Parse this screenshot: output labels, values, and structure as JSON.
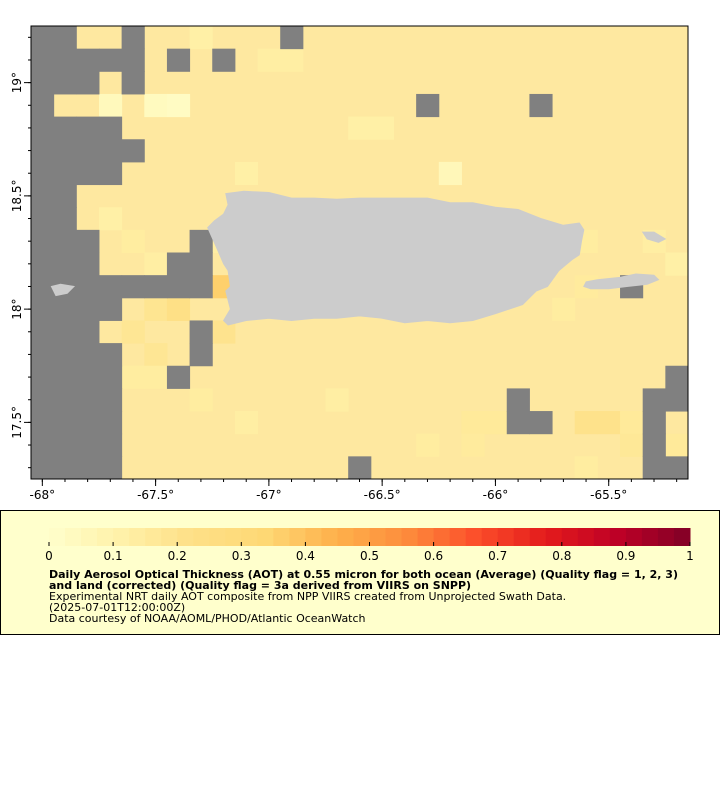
{
  "map": {
    "bounds": {
      "lon_min": -68.05,
      "lon_max": -65.15,
      "lat_min": 17.25,
      "lat_max": 19.25
    },
    "lon_ticks": [
      {
        "value": -68,
        "label": "-68°"
      },
      {
        "value": -67.5,
        "label": "-67.5°"
      },
      {
        "value": -67,
        "label": "-67°"
      },
      {
        "value": -66.5,
        "label": "-66.5°"
      },
      {
        "value": -66,
        "label": "-66°"
      },
      {
        "value": -65.5,
        "label": "-65.5°"
      }
    ],
    "lat_ticks": [
      {
        "value": 19,
        "label": "19°"
      },
      {
        "value": 18.5,
        "label": "18.5°"
      },
      {
        "value": 18,
        "label": "18°"
      },
      {
        "value": 17.5,
        "label": "17.5°"
      }
    ],
    "colors": {
      "missing": "#808080",
      "land": "#cccccc",
      "default_aot": "#fee8a0"
    },
    "cell_deg": 0.1,
    "missing_cells": [
      [
        -68.0,
        19.2
      ],
      [
        -67.9,
        19.2
      ],
      [
        -67.6,
        19.2
      ],
      [
        -66.9,
        19.2
      ],
      [
        -68.0,
        19.1
      ],
      [
        -67.9,
        19.1
      ],
      [
        -67.8,
        19.1
      ],
      [
        -67.7,
        19.1
      ],
      [
        -67.6,
        19.1
      ],
      [
        -67.4,
        19.1
      ],
      [
        -67.2,
        19.1
      ],
      [
        -68.0,
        19.0
      ],
      [
        -67.9,
        19.0
      ],
      [
        -67.8,
        19.0
      ],
      [
        -67.6,
        19.0
      ],
      [
        -68.0,
        18.9
      ],
      [
        -66.3,
        18.9
      ],
      [
        -65.8,
        18.9
      ],
      [
        -68.0,
        18.8
      ],
      [
        -67.9,
        18.8
      ],
      [
        -67.8,
        18.8
      ],
      [
        -67.7,
        18.8
      ],
      [
        -68.0,
        18.7
      ],
      [
        -67.9,
        18.7
      ],
      [
        -67.8,
        18.7
      ],
      [
        -67.7,
        18.7
      ],
      [
        -67.6,
        18.7
      ],
      [
        -68.0,
        18.6
      ],
      [
        -67.9,
        18.6
      ],
      [
        -67.8,
        18.6
      ],
      [
        -67.7,
        18.6
      ],
      [
        -68.0,
        18.5
      ],
      [
        -67.9,
        18.5
      ],
      [
        -68.0,
        18.4
      ],
      [
        -67.9,
        18.4
      ],
      [
        -68.0,
        18.3
      ],
      [
        -67.9,
        18.3
      ],
      [
        -67.8,
        18.3
      ],
      [
        -67.3,
        18.3
      ],
      [
        -68.0,
        18.2
      ],
      [
        -67.9,
        18.2
      ],
      [
        -67.8,
        18.2
      ],
      [
        -67.4,
        18.2
      ],
      [
        -67.3,
        18.2
      ],
      [
        -68.0,
        18.1
      ],
      [
        -67.9,
        18.1
      ],
      [
        -67.8,
        18.1
      ],
      [
        -67.7,
        18.1
      ],
      [
        -67.6,
        18.1
      ],
      [
        -67.5,
        18.1
      ],
      [
        -67.4,
        18.1
      ],
      [
        -67.3,
        18.1
      ],
      [
        -65.4,
        18.1
      ],
      [
        -68.0,
        18.0
      ],
      [
        -67.9,
        18.0
      ],
      [
        -67.8,
        18.0
      ],
      [
        -67.7,
        18.0
      ],
      [
        -68.0,
        17.9
      ],
      [
        -67.9,
        17.9
      ],
      [
        -67.8,
        17.9
      ],
      [
        -67.3,
        17.9
      ],
      [
        -68.0,
        17.8
      ],
      [
        -67.9,
        17.8
      ],
      [
        -67.8,
        17.8
      ],
      [
        -67.7,
        17.8
      ],
      [
        -67.3,
        17.8
      ],
      [
        -68.0,
        17.7
      ],
      [
        -67.9,
        17.7
      ],
      [
        -67.8,
        17.7
      ],
      [
        -67.7,
        17.7
      ],
      [
        -67.4,
        17.7
      ],
      [
        -65.2,
        17.7
      ],
      [
        -68.0,
        17.6
      ],
      [
        -67.9,
        17.6
      ],
      [
        -67.8,
        17.6
      ],
      [
        -67.7,
        17.6
      ],
      [
        -65.9,
        17.6
      ],
      [
        -65.3,
        17.6
      ],
      [
        -65.2,
        17.6
      ],
      [
        -68.0,
        17.5
      ],
      [
        -67.9,
        17.5
      ],
      [
        -67.8,
        17.5
      ],
      [
        -67.7,
        17.5
      ],
      [
        -65.9,
        17.5
      ],
      [
        -65.8,
        17.5
      ],
      [
        -65.3,
        17.5
      ],
      [
        -68.0,
        17.4
      ],
      [
        -67.9,
        17.4
      ],
      [
        -67.8,
        17.4
      ],
      [
        -67.7,
        17.4
      ],
      [
        -65.3,
        17.4
      ],
      [
        -68.0,
        17.3
      ],
      [
        -67.9,
        17.3
      ],
      [
        -67.8,
        17.3
      ],
      [
        -67.7,
        17.3
      ],
      [
        -66.6,
        17.3
      ],
      [
        -65.3,
        17.3
      ],
      [
        -65.2,
        17.3
      ],
      [
        -66.7,
        17.2
      ]
    ],
    "aot_cells": [
      {
        "lon": -67.5,
        "lat": 18.0,
        "aot": 0.19
      },
      {
        "lon": -67.4,
        "lat": 18.0,
        "aot": 0.23
      },
      {
        "lon": -67.6,
        "lat": 17.9,
        "aot": 0.18
      },
      {
        "lon": -67.2,
        "lat": 18.1,
        "aot": 0.36
      },
      {
        "lon": -67.2,
        "lat": 17.9,
        "aot": 0.2
      },
      {
        "lon": -67.5,
        "lat": 17.8,
        "aot": 0.18
      },
      {
        "lon": -67.6,
        "lat": 17.7,
        "aot": 0.14
      },
      {
        "lon": -67.5,
        "lat": 17.7,
        "aot": 0.14
      },
      {
        "lon": -67.7,
        "lat": 18.4,
        "aot": 0.12
      },
      {
        "lon": -67.6,
        "lat": 18.3,
        "aot": 0.14
      },
      {
        "lon": -67.5,
        "lat": 18.2,
        "aot": 0.13
      },
      {
        "lon": -67.7,
        "lat": 18.9,
        "aot": 0.05
      },
      {
        "lon": -67.5,
        "lat": 18.9,
        "aot": 0.04
      },
      {
        "lon": -67.4,
        "lat": 18.9,
        "aot": 0.03
      },
      {
        "lon": -66.6,
        "lat": 18.8,
        "aot": 0.12
      },
      {
        "lon": -66.5,
        "lat": 18.8,
        "aot": 0.12
      },
      {
        "lon": -65.6,
        "lat": 18.3,
        "aot": 0.14
      },
      {
        "lon": -65.6,
        "lat": 18.1,
        "aot": 0.15
      },
      {
        "lon": -65.7,
        "lat": 18.0,
        "aot": 0.14
      },
      {
        "lon": -65.8,
        "lat": 17.5,
        "aot": 0.16
      },
      {
        "lon": -65.6,
        "lat": 17.5,
        "aot": 0.21
      },
      {
        "lon": -65.5,
        "lat": 17.5,
        "aot": 0.21
      },
      {
        "lon": -65.4,
        "lat": 17.5,
        "aot": 0.16
      },
      {
        "lon": -66.1,
        "lat": 17.5,
        "aot": 0.16
      },
      {
        "lon": -66.0,
        "lat": 17.5,
        "aot": 0.16
      },
      {
        "lon": -66.3,
        "lat": 17.4,
        "aot": 0.14
      },
      {
        "lon": -66.1,
        "lat": 17.4,
        "aot": 0.15
      },
      {
        "lon": -65.4,
        "lat": 17.4,
        "aot": 0.17
      },
      {
        "lon": -65.6,
        "lat": 17.3,
        "aot": 0.14
      },
      {
        "lon": -65.2,
        "lat": 17.4,
        "aot": 0.16
      },
      {
        "lon": -67.2,
        "lat": 18.3,
        "aot": 0.13
      },
      {
        "lon": -67.3,
        "lat": 17.6,
        "aot": 0.14
      },
      {
        "lon": -67.1,
        "lat": 17.5,
        "aot": 0.13
      },
      {
        "lon": -66.7,
        "lat": 17.6,
        "aot": 0.13
      },
      {
        "lon": -67.3,
        "lat": 19.2,
        "aot": 0.12
      },
      {
        "lon": -67.0,
        "lat": 19.1,
        "aot": 0.13
      },
      {
        "lon": -66.9,
        "lat": 19.1,
        "aot": 0.13
      },
      {
        "lon": -67.1,
        "lat": 18.6,
        "aot": 0.12
      },
      {
        "lon": -66.2,
        "lat": 18.6,
        "aot": 0.06
      },
      {
        "lon": -65.3,
        "lat": 18.3,
        "aot": 0.13
      },
      {
        "lon": -65.2,
        "lat": 18.2,
        "aot": 0.12
      }
    ],
    "land": {
      "puerto_rico": [
        [
          -67.19,
          18.51
        ],
        [
          -67.11,
          18.52
        ],
        [
          -67.0,
          18.515
        ],
        [
          -66.9,
          18.49
        ],
        [
          -66.8,
          18.49
        ],
        [
          -66.7,
          18.485
        ],
        [
          -66.6,
          18.49
        ],
        [
          -66.5,
          18.49
        ],
        [
          -66.4,
          18.49
        ],
        [
          -66.3,
          18.49
        ],
        [
          -66.2,
          18.47
        ],
        [
          -66.1,
          18.47
        ],
        [
          -66.0,
          18.45
        ],
        [
          -65.9,
          18.44
        ],
        [
          -65.8,
          18.4
        ],
        [
          -65.7,
          18.37
        ],
        [
          -65.63,
          18.38
        ],
        [
          -65.61,
          18.35
        ],
        [
          -65.62,
          18.3
        ],
        [
          -65.63,
          18.24
        ],
        [
          -65.66,
          18.22
        ],
        [
          -65.72,
          18.17
        ],
        [
          -65.77,
          18.1
        ],
        [
          -65.82,
          18.08
        ],
        [
          -65.88,
          18.02
        ],
        [
          -66.0,
          17.98
        ],
        [
          -66.1,
          17.95
        ],
        [
          -66.2,
          17.94
        ],
        [
          -66.3,
          17.95
        ],
        [
          -66.4,
          17.94
        ],
        [
          -66.5,
          17.96
        ],
        [
          -66.6,
          17.97
        ],
        [
          -66.7,
          17.96
        ],
        [
          -66.8,
          17.96
        ],
        [
          -66.9,
          17.95
        ],
        [
          -67.0,
          17.96
        ],
        [
          -67.1,
          17.95
        ],
        [
          -67.18,
          17.93
        ],
        [
          -67.2,
          17.95
        ],
        [
          -67.17,
          18.0
        ],
        [
          -67.19,
          18.08
        ],
        [
          -67.17,
          18.1
        ],
        [
          -67.18,
          18.17
        ],
        [
          -67.2,
          18.2
        ],
        [
          -67.23,
          18.27
        ],
        [
          -67.27,
          18.36
        ],
        [
          -67.24,
          18.39
        ],
        [
          -67.2,
          18.42
        ],
        [
          -67.18,
          18.46
        ],
        [
          -67.19,
          18.51
        ]
      ],
      "vieques": [
        [
          -65.6,
          18.12
        ],
        [
          -65.55,
          18.13
        ],
        [
          -65.45,
          18.14
        ],
        [
          -65.38,
          18.155
        ],
        [
          -65.3,
          18.15
        ],
        [
          -65.28,
          18.13
        ],
        [
          -65.33,
          18.11
        ],
        [
          -65.42,
          18.1
        ],
        [
          -65.5,
          18.09
        ],
        [
          -65.58,
          18.09
        ],
        [
          -65.61,
          18.1
        ],
        [
          -65.6,
          18.12
        ]
      ],
      "culebra": [
        [
          -65.35,
          18.34
        ],
        [
          -65.3,
          18.34
        ],
        [
          -65.25,
          18.31
        ],
        [
          -65.28,
          18.295
        ],
        [
          -65.33,
          18.31
        ],
        [
          -65.35,
          18.34
        ]
      ],
      "mona": [
        [
          -67.96,
          18.1
        ],
        [
          -67.92,
          18.11
        ],
        [
          -67.86,
          18.1
        ],
        [
          -67.89,
          18.07
        ],
        [
          -67.94,
          18.06
        ],
        [
          -67.96,
          18.1
        ]
      ]
    }
  },
  "colorbar": {
    "min": 0,
    "max": 1,
    "stops": [
      "#ffffcc",
      "#fff1a9",
      "#fee087",
      "#fed976",
      "#feb24c",
      "#fd8d3c",
      "#fc4e2a",
      "#e31a1c",
      "#bd0026",
      "#800026"
    ],
    "tick_labels": [
      "0",
      "0.1",
      "0.2",
      "0.3",
      "0.4",
      "0.5",
      "0.6",
      "0.7",
      "0.8",
      "0.9",
      "1"
    ]
  },
  "legend": {
    "title": "Daily Aerosol Optical Thickness (AOT) at 0.55 micron for both ocean (Average) (Quality flag = 1, 2, 3) and land (corrected) (Quality flag = 3a derived from VIIRS on SNPP)",
    "description": "Experimental NRT daily AOT composite from NPP VIIRS created from Unprojected Swath Data.",
    "time": "(2025-07-01T12:00:00Z)",
    "credit": "Data courtesy of NOAA/AOML/PHOD/Atlantic OceanWatch"
  }
}
